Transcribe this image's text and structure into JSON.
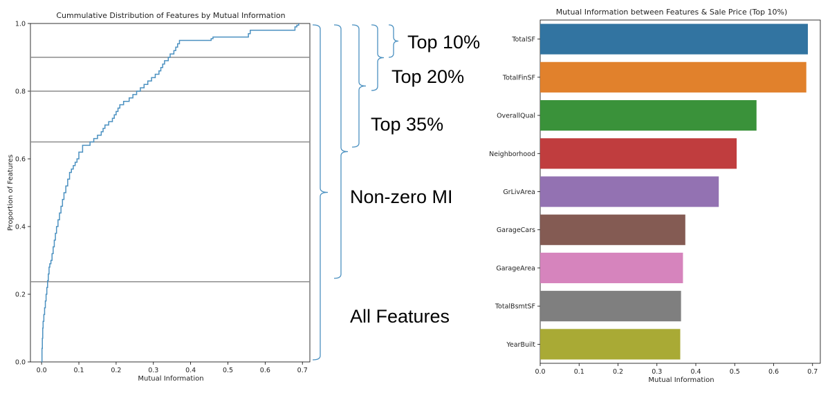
{
  "chart_data": [
    {
      "type": "line",
      "subtype": "step-ecdf",
      "title": "Cummulative Distribution of Features by Mutual Information",
      "xlabel": "Mutual Information",
      "ylabel": "Proportion of Features",
      "xlim": [
        -0.03,
        0.72
      ],
      "ylim": [
        0,
        1.0
      ],
      "x_ticks": [
        "0.0",
        "0.1",
        "0.2",
        "0.3",
        "0.4",
        "0.5",
        "0.6",
        "0.7"
      ],
      "y_ticks": [
        "0.0",
        "0.2",
        "0.4",
        "0.6",
        "0.8",
        "1.0"
      ],
      "color": "#4a90c0",
      "reference_lines": [
        0.237,
        0.65,
        0.8,
        0.9
      ],
      "series": [
        {
          "x": [
            0,
            0.001,
            0.002,
            0.003,
            0.004,
            0.006,
            0.008,
            0.01,
            0.012,
            0.014,
            0.016,
            0.018,
            0.02,
            0.022,
            0.025,
            0.028,
            0.031,
            0.034,
            0.037,
            0.04,
            0.044,
            0.048,
            0.052,
            0.056,
            0.06,
            0.065,
            0.07,
            0.075,
            0.08,
            0.085,
            0.09,
            0.095,
            0.1,
            0.11,
            0.12,
            0.13,
            0.14,
            0.15,
            0.16,
            0.165,
            0.17,
            0.18,
            0.19,
            0.195,
            0.2,
            0.205,
            0.21,
            0.22,
            0.235,
            0.245,
            0.255,
            0.265,
            0.275,
            0.285,
            0.295,
            0.305,
            0.315,
            0.32,
            0.325,
            0.33,
            0.34,
            0.345,
            0.355,
            0.36,
            0.365,
            0.37,
            0.455,
            0.46,
            0.555,
            0.56,
            0.68,
            0.685,
            0.69
          ],
          "y": [
            0.0,
            0.04,
            0.07,
            0.1,
            0.12,
            0.14,
            0.16,
            0.18,
            0.2,
            0.22,
            0.24,
            0.26,
            0.28,
            0.29,
            0.3,
            0.32,
            0.34,
            0.36,
            0.38,
            0.4,
            0.42,
            0.44,
            0.46,
            0.48,
            0.5,
            0.52,
            0.54,
            0.56,
            0.57,
            0.58,
            0.59,
            0.6,
            0.62,
            0.64,
            0.64,
            0.65,
            0.66,
            0.67,
            0.68,
            0.69,
            0.7,
            0.71,
            0.72,
            0.73,
            0.74,
            0.75,
            0.76,
            0.77,
            0.78,
            0.79,
            0.8,
            0.81,
            0.82,
            0.83,
            0.84,
            0.85,
            0.86,
            0.87,
            0.88,
            0.89,
            0.9,
            0.91,
            0.92,
            0.93,
            0.94,
            0.95,
            0.955,
            0.96,
            0.97,
            0.98,
            0.99,
            0.995,
            1.0
          ]
        }
      ]
    },
    {
      "type": "bar",
      "orientation": "horizontal",
      "title": "Mutual Information between Features & Sale Price (Top 10%)",
      "xlabel": "Mutual Information",
      "ylabel": "",
      "xlim": [
        0,
        0.72
      ],
      "x_ticks": [
        "0.0",
        "0.1",
        "0.2",
        "0.3",
        "0.4",
        "0.5",
        "0.6",
        "0.7"
      ],
      "categories": [
        "TotalSF",
        "TotalFinSF",
        "OverallQual",
        "Neighborhood",
        "GrLivArea",
        "GarageCars",
        "GarageArea",
        "TotalBsmtSF",
        "YearBuilt"
      ],
      "values": [
        0.688,
        0.684,
        0.556,
        0.505,
        0.459,
        0.373,
        0.367,
        0.362,
        0.36
      ],
      "colors": [
        "#3274a1",
        "#e1812c",
        "#3a923a",
        "#c03d3e",
        "#9372b2",
        "#845b53",
        "#d684bd",
        "#7f7f7f",
        "#a9aa35"
      ]
    }
  ],
  "annotations": {
    "top10": "Top 10%",
    "top20": "Top 20%",
    "top35": "Top 35%",
    "nonzero": "Non-zero MI",
    "all": "All Features",
    "bracket_color": "#4a90c0"
  }
}
